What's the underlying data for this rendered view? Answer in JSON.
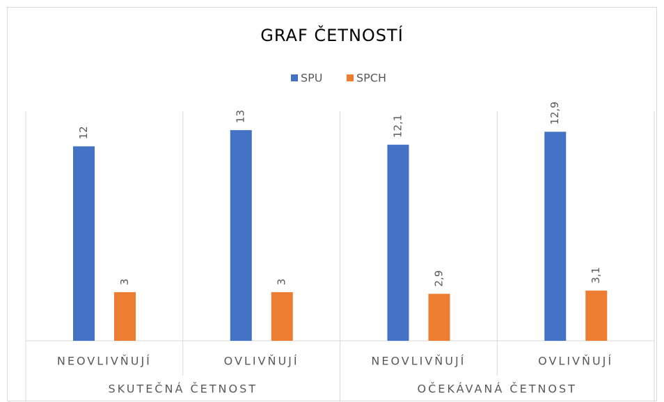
{
  "chart_data": {
    "type": "bar",
    "title": "GRAF ČETNOSTÍ",
    "categories": [
      "NEOVLIVŇUJÍ",
      "OVLIVŇUJÍ",
      "NEOVLIVŇUJÍ",
      "OVLIVŇUJÍ"
    ],
    "groups": [
      "SKUTEČNÁ ČETNOST",
      "OČEKÁVANÁ ČETNOST"
    ],
    "series": [
      {
        "name": "SPU",
        "color": "#4472c4",
        "values": [
          12,
          13,
          12.1,
          12.9
        ],
        "value_labels": [
          "12",
          "13",
          "12,1",
          "12,9"
        ]
      },
      {
        "name": "SPCH",
        "color": "#ed7d31",
        "values": [
          3,
          3,
          2.9,
          3.1
        ],
        "value_labels": [
          "3",
          "3",
          "2,9",
          "3,1"
        ]
      }
    ],
    "legend": "top",
    "grid": true
  }
}
